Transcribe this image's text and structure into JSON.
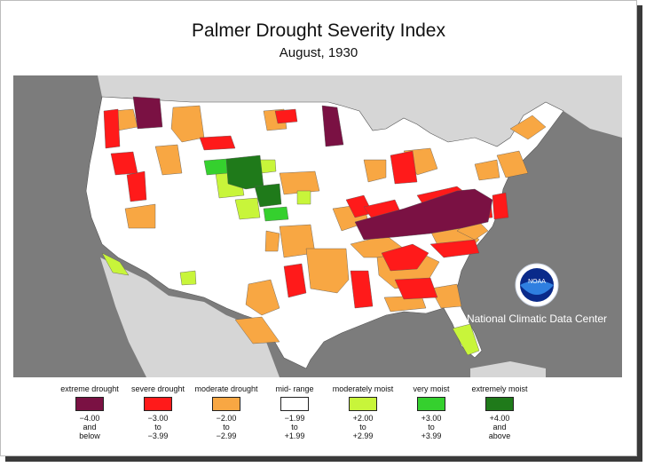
{
  "title": "Palmer Drought Severity Index",
  "subtitle": "August, 1930",
  "logo": {
    "text": "NOAA",
    "caption": "National Climatic Data Center"
  },
  "colors": {
    "extreme": "#7a1143",
    "severe": "#ff1a1a",
    "moderate": "#f8a743",
    "mid": "#ffffff",
    "moderately_moist": "#c8f53a",
    "very_moist": "#35d02e",
    "extremely_moist": "#1f7a1a",
    "land_outside": "#d6d6d6",
    "water": "#7c7c7c"
  },
  "legend": [
    {
      "label": "extreme\ndrought",
      "range": "−4.00\nand\nbelow",
      "color": "#7a1143"
    },
    {
      "label": "severe\ndrought",
      "range": "−3.00\nto\n−3.99",
      "color": "#ff1a1a"
    },
    {
      "label": "moderate\ndrought",
      "range": "−2.00\nto\n−2.99",
      "color": "#f8a743"
    },
    {
      "label": "mid-\nrange",
      "range": "−1.99\nto\n+1.99",
      "color": "#ffffff"
    },
    {
      "label": "moderately\nmoist",
      "range": "+2.00\nto\n+2.99",
      "color": "#c8f53a"
    },
    {
      "label": "very\nmoist",
      "range": "+3.00\nto\n+3.99",
      "color": "#35d02e"
    },
    {
      "label": "extremely\nmoist",
      "range": "+4.00\nand\nabove",
      "color": "#1f7a1a"
    }
  ]
}
